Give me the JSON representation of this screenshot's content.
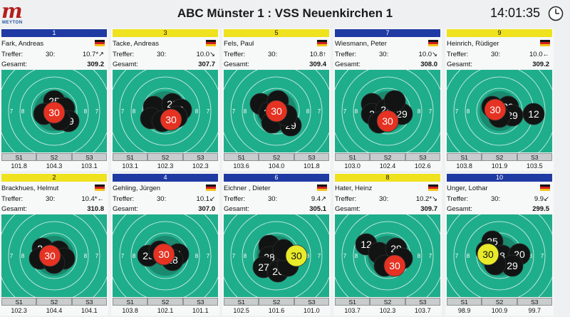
{
  "header": {
    "logo_letter": "m",
    "logo_brand": "MEYTON",
    "title": "ABC Münster 1 : VSS Neuenkirchen 1",
    "time": "14:01:35"
  },
  "labels": {
    "treffer": "Treffer:",
    "gesamt": "Gesamt:",
    "s1": "S1",
    "s2": "S2",
    "s3": "S3"
  },
  "colors": {
    "blue": "#1f3aa3",
    "yellow": "#efe21e",
    "target_green": "#1fae8b",
    "shot_red": "#e53222",
    "shot_yellow": "#e8ea2a"
  },
  "shooters": [
    {
      "position": "1",
      "color": "blue",
      "name": "Fark, Andreas",
      "shots": "30:",
      "last": "10.7*↗",
      "total": "309.2",
      "s1": "101.8",
      "s2": "104.3",
      "s3": "103.1",
      "hits": [
        {
          "n": "25",
          "x": 0,
          "y": -14
        },
        {
          "n": "",
          "x": -14,
          "y": 4
        },
        {
          "n": "",
          "x": 14,
          "y": -4
        },
        {
          "n": "29",
          "x": 20,
          "y": 14
        },
        {
          "n": "",
          "x": 8,
          "y": 12
        },
        {
          "n": "30",
          "x": 0,
          "y": 2,
          "current": true
        }
      ]
    },
    {
      "position": "3",
      "color": "yellow",
      "name": "Tacke, Andreas",
      "shots": "30:",
      "last": "10.0↘",
      "total": "307.7",
      "s1": "103.1",
      "s2": "102.3",
      "s3": "102.3",
      "hits": [
        {
          "n": "",
          "x": -16,
          "y": -6
        },
        {
          "n": "",
          "x": -20,
          "y": 10
        },
        {
          "n": "",
          "x": -4,
          "y": 14
        },
        {
          "n": "28",
          "x": 10,
          "y": -10
        },
        {
          "n": "8",
          "x": 22,
          "y": -2
        },
        {
          "n": "",
          "x": 16,
          "y": 8
        },
        {
          "n": "30",
          "x": 8,
          "y": 12,
          "current": true
        }
      ]
    },
    {
      "position": "5",
      "color": "yellow",
      "name": "Fels, Paul",
      "shots": "30:",
      "last": "10.8↑",
      "total": "309.4",
      "s1": "103.6",
      "s2": "104.0",
      "s3": "101.8",
      "hits": [
        {
          "n": "",
          "x": -22,
          "y": -10
        },
        {
          "n": "27",
          "x": -10,
          "y": 2
        },
        {
          "n": "",
          "x": 2,
          "y": -14
        },
        {
          "n": "",
          "x": -6,
          "y": 16
        },
        {
          "n": "29",
          "x": 20,
          "y": 20
        },
        {
          "n": "",
          "x": 14,
          "y": 6
        },
        {
          "n": "30",
          "x": 0,
          "y": 0,
          "current": true
        }
      ]
    },
    {
      "position": "7",
      "color": "blue",
      "name": "Wiesmann, Peter",
      "shots": "30:",
      "last": "10.0↘",
      "total": "308.0",
      "s1": "103.0",
      "s2": "102.4",
      "s3": "102.6",
      "hits": [
        {
          "n": "",
          "x": -22,
          "y": -10
        },
        {
          "n": "2",
          "x": -22,
          "y": 4
        },
        {
          "n": "28",
          "x": -2,
          "y": -2
        },
        {
          "n": "29",
          "x": 20,
          "y": 4
        },
        {
          "n": "",
          "x": -12,
          "y": 16
        },
        {
          "n": "",
          "x": 10,
          "y": -14
        },
        {
          "n": "30",
          "x": 0,
          "y": 14,
          "current": true
        }
      ]
    },
    {
      "position": "9",
      "color": "yellow",
      "name": "Heinrich, Rüdiger",
      "shots": "30:",
      "last": "10.0←",
      "total": "309.2",
      "s1": "103.8",
      "s2": "101.9",
      "s3": "103.5",
      "hits": [
        {
          "n": "",
          "x": -10,
          "y": -6
        },
        {
          "n": "29",
          "x": 12,
          "y": -6
        },
        {
          "n": "29",
          "x": 18,
          "y": 6
        },
        {
          "n": "",
          "x": 0,
          "y": 8
        },
        {
          "n": "12",
          "x": 48,
          "y": 4
        },
        {
          "n": "30",
          "x": -6,
          "y": -2,
          "current": true
        }
      ]
    },
    {
      "position": "2",
      "color": "yellow",
      "name": "Brackhues, Helmut",
      "shots": "30:",
      "last": "10.4*←",
      "total": "310.8",
      "s1": "102.3",
      "s2": "104.4",
      "s3": "104.1",
      "hits": [
        {
          "n": "24",
          "x": -16,
          "y": -10
        },
        {
          "n": "",
          "x": -20,
          "y": 4
        },
        {
          "n": "",
          "x": 6,
          "y": -6
        },
        {
          "n": "",
          "x": 14,
          "y": 4
        },
        {
          "n": "",
          "x": 0,
          "y": 10
        },
        {
          "n": "30",
          "x": -6,
          "y": 0,
          "current": true
        }
      ]
    },
    {
      "position": "4",
      "color": "blue",
      "name": "Gehling, Jürgen",
      "shots": "30:",
      "last": "10.1↙",
      "total": "307.0",
      "s1": "103.8",
      "s2": "102.1",
      "s3": "101.1",
      "hits": [
        {
          "n": "23",
          "x": -24,
          "y": 0
        },
        {
          "n": "",
          "x": -8,
          "y": -6
        },
        {
          "n": "5",
          "x": 18,
          "y": -2
        },
        {
          "n": "28",
          "x": 10,
          "y": 6
        },
        {
          "n": "30",
          "x": -2,
          "y": -2,
          "current": true
        }
      ]
    },
    {
      "position": "6",
      "color": "blue",
      "name": "Eichner , Dieter",
      "shots": "30:",
      "last": "9.4↗",
      "total": "305.1",
      "s1": "102.5",
      "s2": "101.6",
      "s3": "101.0",
      "hits": [
        {
          "n": "",
          "x": -10,
          "y": -14
        },
        {
          "n": "28",
          "x": -10,
          "y": 2
        },
        {
          "n": "27",
          "x": -18,
          "y": 16
        },
        {
          "n": "26",
          "x": 2,
          "y": 22
        },
        {
          "n": "",
          "x": 16,
          "y": 14
        },
        {
          "n": "",
          "x": 10,
          "y": -8
        },
        {
          "n": "30",
          "x": 28,
          "y": 0,
          "current": true,
          "yellow": true
        }
      ]
    },
    {
      "position": "8",
      "color": "yellow",
      "name": "Hater, Heinz",
      "shots": "30:",
      "last": "10.2*↘",
      "total": "309.7",
      "s1": "103.7",
      "s2": "102.3",
      "s3": "103.7",
      "hits": [
        {
          "n": "12",
          "x": -30,
          "y": -16
        },
        {
          "n": "",
          "x": -12,
          "y": -4
        },
        {
          "n": "29",
          "x": 12,
          "y": -10
        },
        {
          "n": "",
          "x": 20,
          "y": 4
        },
        {
          "n": "",
          "x": -4,
          "y": 14
        },
        {
          "n": "30",
          "x": 10,
          "y": 14,
          "current": true
        }
      ]
    },
    {
      "position": "10",
      "color": "blue",
      "name": "Unger, Lothar",
      "shots": "30:",
      "last": "9.9↙",
      "total": "299.5",
      "s1": "98.9",
      "s2": "100.9",
      "s3": "99.7",
      "hits": [
        {
          "n": "25",
          "x": -10,
          "y": -20
        },
        {
          "n": "",
          "x": -18,
          "y": -6
        },
        {
          "n": "8",
          "x": 4,
          "y": 0
        },
        {
          "n": "20",
          "x": 28,
          "y": -2
        },
        {
          "n": "29",
          "x": 18,
          "y": 14
        },
        {
          "n": "",
          "x": -6,
          "y": 12
        },
        {
          "n": "30",
          "x": -16,
          "y": -2,
          "current": true,
          "yellow": true
        }
      ]
    }
  ]
}
